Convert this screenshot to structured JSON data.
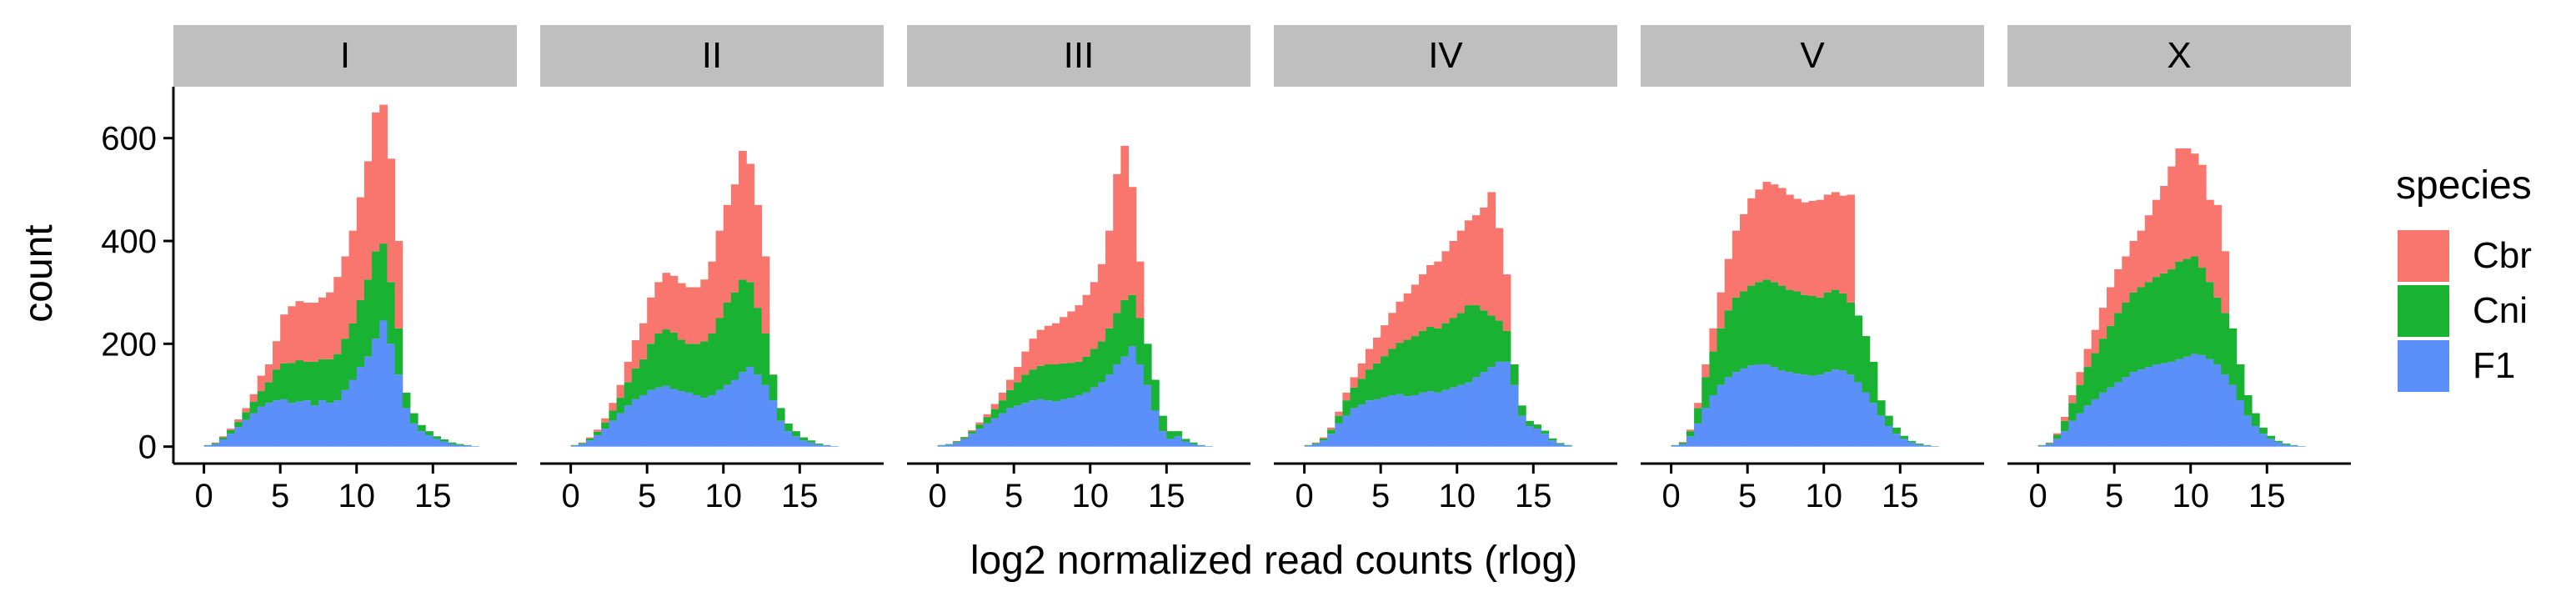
{
  "chart_data": {
    "type": "bar",
    "subtype": "stacked-histogram-facets",
    "xlabel": "log2 normalized read counts (rlog)",
    "ylabel": "count",
    "x_ticks": [
      0,
      5,
      10,
      15
    ],
    "y_ticks": [
      0,
      200,
      400,
      600
    ],
    "xlim": [
      -2,
      20.5
    ],
    "ylim": [
      -33,
      700
    ],
    "bin_start": 0,
    "bin_width": 0.5,
    "legend": {
      "title": "species",
      "position": "right",
      "items": [
        {
          "label": "Cbr",
          "color": "#F8766D"
        },
        {
          "label": "Cni",
          "color": "#19B232"
        },
        {
          "label": "F1",
          "color": "#5B8FF9"
        }
      ]
    },
    "facets": [
      {
        "label": "I",
        "series": [
          {
            "name": "F1",
            "values": [
              2,
              5,
              14,
              25,
              38,
              52,
              65,
              78,
              85,
              90,
              92,
              85,
              88,
              90,
              80,
              90,
              85,
              90,
              110,
              130,
              155,
              175,
              210,
              245,
              200,
              140,
              75,
              45,
              30,
              22,
              15,
              10,
              5,
              3,
              2,
              1
            ]
          },
          {
            "name": "Cni",
            "values": [
              1,
              2,
              4,
              7,
              10,
              15,
              22,
              30,
              40,
              60,
              70,
              78,
              80,
              75,
              85,
              80,
              85,
              90,
              100,
              110,
              130,
              150,
              170,
              150,
              120,
              90,
              30,
              20,
              12,
              8,
              5,
              4,
              3,
              2,
              1,
              0
            ]
          },
          {
            "name": "Cbr",
            "values": [
              0,
              1,
              2,
              3,
              5,
              8,
              15,
              30,
              35,
              55,
              95,
              110,
              115,
              115,
              115,
              120,
              130,
              150,
              160,
              180,
              200,
              230,
              270,
              270,
              240,
              170,
              0,
              0,
              0,
              0,
              0,
              0,
              0,
              0,
              0,
              0
            ]
          }
        ]
      },
      {
        "label": "II",
        "series": [
          {
            "name": "F1",
            "values": [
              2,
              5,
              12,
              22,
              35,
              50,
              65,
              80,
              92,
              100,
              110,
              115,
              118,
              112,
              108,
              105,
              100,
              95,
              100,
              110,
              120,
              130,
              145,
              155,
              140,
              120,
              90,
              50,
              30,
              20,
              12,
              8,
              4,
              2,
              1,
              0
            ]
          },
          {
            "name": "Cni",
            "values": [
              1,
              2,
              4,
              7,
              12,
              20,
              30,
              45,
              60,
              70,
              90,
              105,
              110,
              110,
              100,
              95,
              100,
              110,
              120,
              140,
              160,
              170,
              180,
              165,
              130,
              100,
              50,
              25,
              15,
              10,
              6,
              4,
              2,
              1,
              0,
              0
            ]
          },
          {
            "name": "Cbr",
            "values": [
              0,
              1,
              2,
              4,
              8,
              15,
              25,
              40,
              55,
              70,
              90,
              100,
              110,
              110,
              110,
              110,
              110,
              120,
              140,
              170,
              190,
              210,
              250,
              230,
              200,
              150,
              0,
              0,
              0,
              0,
              0,
              0,
              0,
              0,
              0,
              0
            ]
          }
        ]
      },
      {
        "label": "III",
        "series": [
          {
            "name": "F1",
            "values": [
              2,
              4,
              8,
              15,
              25,
              35,
              45,
              55,
              65,
              75,
              80,
              85,
              90,
              92,
              90,
              88,
              92,
              95,
              100,
              105,
              115,
              125,
              140,
              160,
              175,
              195,
              160,
              120,
              70,
              30,
              15,
              20,
              10,
              5,
              2,
              1
            ]
          },
          {
            "name": "Cni",
            "values": [
              1,
              1,
              2,
              3,
              5,
              8,
              12,
              18,
              25,
              35,
              45,
              55,
              60,
              65,
              70,
              72,
              70,
              68,
              65,
              70,
              75,
              80,
              90,
              100,
              110,
              100,
              90,
              80,
              60,
              30,
              15,
              10,
              5,
              3,
              1,
              0
            ]
          },
          {
            "name": "Cbr",
            "values": [
              0,
              0,
              1,
              1,
              2,
              4,
              6,
              10,
              15,
              20,
              30,
              45,
              60,
              70,
              75,
              80,
              90,
              100,
              110,
              120,
              130,
              150,
              190,
              270,
              300,
              210,
              110,
              0,
              0,
              0,
              0,
              0,
              0,
              0,
              0,
              0
            ]
          }
        ]
      },
      {
        "label": "IV",
        "series": [
          {
            "name": "F1",
            "values": [
              2,
              5,
              12,
              25,
              45,
              60,
              75,
              82,
              90,
              92,
              96,
              100,
              102,
              98,
              100,
              105,
              108,
              105,
              110,
              115,
              120,
              125,
              135,
              145,
              155,
              165,
              165,
              120,
              60,
              40,
              35,
              25,
              12,
              5,
              2,
              0
            ]
          },
          {
            "name": "Cni",
            "values": [
              1,
              2,
              4,
              8,
              15,
              30,
              40,
              50,
              60,
              70,
              80,
              90,
              100,
              110,
              115,
              120,
              125,
              125,
              130,
              135,
              140,
              150,
              140,
              120,
              100,
              80,
              60,
              40,
              20,
              10,
              8,
              6,
              4,
              2,
              1,
              0
            ]
          },
          {
            "name": "Cbr",
            "values": [
              0,
              1,
              2,
              4,
              8,
              15,
              20,
              30,
              40,
              50,
              60,
              70,
              80,
              90,
              100,
              110,
              120,
              130,
              140,
              150,
              160,
              165,
              175,
              200,
              240,
              180,
              110,
              0,
              0,
              0,
              0,
              0,
              0,
              0,
              0,
              0
            ]
          }
        ]
      },
      {
        "label": "V",
        "series": [
          {
            "name": "F1",
            "values": [
              2,
              5,
              20,
              45,
              75,
              100,
              120,
              135,
              145,
              152,
              158,
              160,
              160,
              155,
              148,
              145,
              142,
              140,
              138,
              140,
              145,
              150,
              148,
              140,
              125,
              105,
              85,
              60,
              40,
              25,
              15,
              8,
              4,
              2,
              1,
              0
            ]
          },
          {
            "name": "Cni",
            "values": [
              1,
              3,
              10,
              30,
              60,
              85,
              110,
              130,
              145,
              150,
              155,
              160,
              165,
              165,
              165,
              160,
              160,
              155,
              155,
              150,
              155,
              155,
              150,
              140,
              130,
              110,
              80,
              30,
              20,
              12,
              6,
              3,
              2,
              1,
              0,
              0
            ]
          },
          {
            "name": "Cbr",
            "values": [
              0,
              1,
              3,
              10,
              25,
              45,
              70,
              100,
              130,
              150,
              170,
              180,
              190,
              190,
              190,
              185,
              180,
              180,
              185,
              190,
              190,
              190,
              190,
              210,
              0,
              0,
              0,
              0,
              0,
              0,
              0,
              0,
              0,
              0,
              0,
              0
            ]
          }
        ]
      },
      {
        "label": "X",
        "series": [
          {
            "name": "F1",
            "values": [
              2,
              5,
              15,
              30,
              50,
              65,
              80,
              92,
              105,
              115,
              125,
              135,
              145,
              150,
              155,
              160,
              162,
              165,
              170,
              175,
              180,
              178,
              170,
              160,
              140,
              120,
              90,
              60,
              40,
              25,
              15,
              8,
              4,
              2,
              1,
              0
            ]
          },
          {
            "name": "Cni",
            "values": [
              1,
              2,
              8,
              20,
              35,
              55,
              75,
              90,
              105,
              120,
              135,
              145,
              155,
              160,
              165,
              170,
              175,
              180,
              190,
              190,
              190,
              170,
              150,
              130,
              120,
              110,
              70,
              40,
              25,
              12,
              6,
              3,
              2,
              1,
              0,
              0
            ]
          },
          {
            "name": "Cbr",
            "values": [
              0,
              1,
              3,
              8,
              15,
              25,
              35,
              45,
              60,
              75,
              85,
              90,
              100,
              110,
              130,
              150,
              170,
              200,
              220,
              215,
              200,
              200,
              160,
              180,
              120,
              0,
              0,
              0,
              0,
              0,
              0,
              0,
              0,
              0,
              0,
              0
            ]
          }
        ]
      }
    ]
  }
}
